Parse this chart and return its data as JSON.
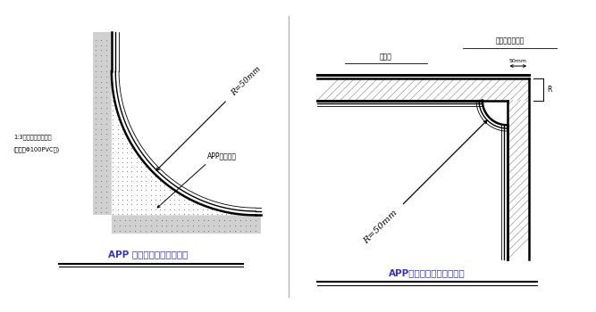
{
  "bg_color": "#ffffff",
  "line_color": "#000000",
  "title1": "APP 防水卷材基层阴角半径",
  "title2": "APP防水卷材基层阳角半径",
  "label_r50_1": "R=50mm",
  "label_r50_2": "R=50mm",
  "label_app1": "APP防水卷材",
  "label_mortar_line1": "1:3水泥砂浆压实抹光",
  "label_mortar_line2": "(用直径Φ100PVC管)",
  "label_fangshui": "防水层",
  "label_cibufen": "此部分用砂浆抹",
  "label_50mm": "50mm",
  "label_R": "R",
  "figsize": [
    6.67,
    3.5
  ],
  "dpi": 100
}
